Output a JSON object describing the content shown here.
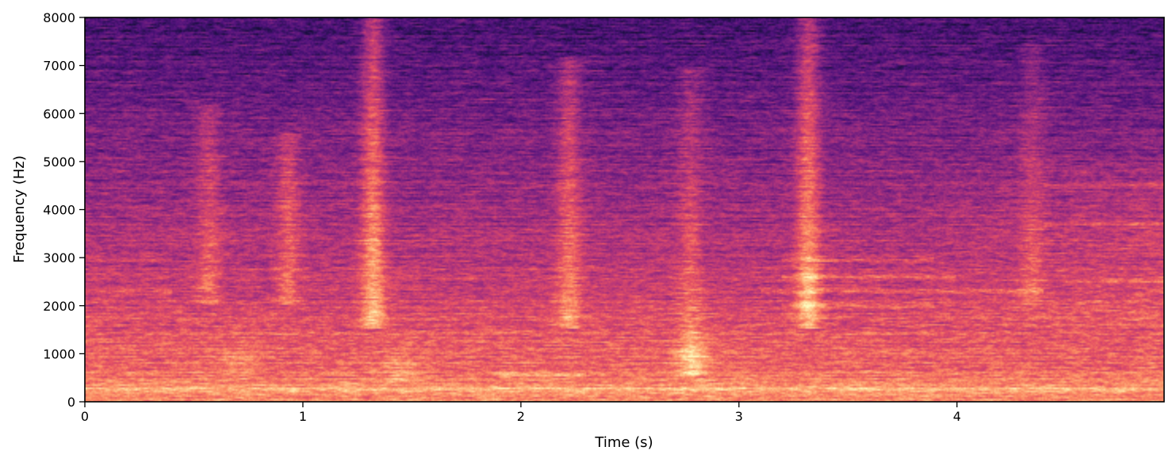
{
  "chart_data": {
    "type": "heatmap",
    "title": "",
    "xlabel": "Time (s)",
    "ylabel": "Frequency (Hz)",
    "xlim": [
      0,
      4.95
    ],
    "ylim": [
      0,
      8000
    ],
    "x_ticks": [
      0,
      1,
      2,
      3,
      4
    ],
    "x_tick_labels": [
      "0",
      "1",
      "2",
      "3",
      "4"
    ],
    "y_ticks": [
      0,
      1000,
      2000,
      3000,
      4000,
      5000,
      6000,
      7000,
      8000
    ],
    "y_tick_labels": [
      "0",
      "1000",
      "2000",
      "3000",
      "4000",
      "5000",
      "6000",
      "7000",
      "8000"
    ],
    "colormap": "magma",
    "grid": false,
    "legend": "none",
    "energy_features": {
      "broadband_bursts": [
        {
          "time_s": 0.57,
          "freq_range_hz": [
            2000,
            6200
          ],
          "strength": 0.45
        },
        {
          "time_s": 0.93,
          "freq_range_hz": [
            2000,
            5600
          ],
          "strength": 0.5
        },
        {
          "time_s": 1.32,
          "freq_range_hz": [
            1500,
            8000
          ],
          "strength": 0.85
        },
        {
          "time_s": 2.22,
          "freq_range_hz": [
            1500,
            7200
          ],
          "strength": 0.6
        },
        {
          "time_s": 2.78,
          "freq_range_hz": [
            500,
            7000
          ],
          "strength": 0.4
        },
        {
          "time_s": 3.32,
          "freq_range_hz": [
            1500,
            8000
          ],
          "strength": 0.85
        },
        {
          "time_s": 4.35,
          "freq_range_hz": [
            2000,
            7500
          ],
          "strength": 0.35
        }
      ],
      "harmonic_bands": [
        {
          "freq_hz": 2300,
          "time_range_s": [
            0.0,
            0.4
          ],
          "strength": 0.5
        },
        {
          "freq_hz": 2950,
          "time_range_s": [
            0.0,
            0.4
          ],
          "strength": 0.45
        },
        {
          "freq_hz": 2950,
          "time_range_s": [
            3.2,
            3.9
          ],
          "strength": 0.55
        },
        {
          "freq_hz": 2600,
          "time_range_s": [
            3.2,
            4.0
          ],
          "strength": 0.6
        },
        {
          "freq_hz": 2300,
          "time_range_s": [
            3.1,
            4.4
          ],
          "strength": 0.6
        },
        {
          "freq_hz": 2000,
          "time_range_s": [
            3.2,
            3.9
          ],
          "strength": 0.5
        },
        {
          "freq_hz": 2500,
          "time_range_s": [
            4.5,
            4.95
          ],
          "strength": 0.5
        },
        {
          "freq_hz": 3700,
          "time_range_s": [
            4.4,
            4.95
          ],
          "strength": 0.5
        },
        {
          "freq_hz": 4500,
          "time_range_s": [
            4.4,
            4.95
          ],
          "strength": 0.45
        },
        {
          "freq_hz": 550,
          "time_range_s": [
            1.9,
            2.3
          ],
          "strength": 0.5
        },
        {
          "freq_hz": 250,
          "time_range_s": [
            0.0,
            4.95
          ],
          "strength": 0.7
        }
      ],
      "low_freq_hotspots": [
        {
          "time_s": 2.8,
          "freq_hz": 900,
          "strength": 0.65
        },
        {
          "time_s": 0.7,
          "freq_hz": 900,
          "strength": 0.45
        },
        {
          "time_s": 1.45,
          "freq_hz": 700,
          "strength": 0.45
        }
      ]
    }
  }
}
